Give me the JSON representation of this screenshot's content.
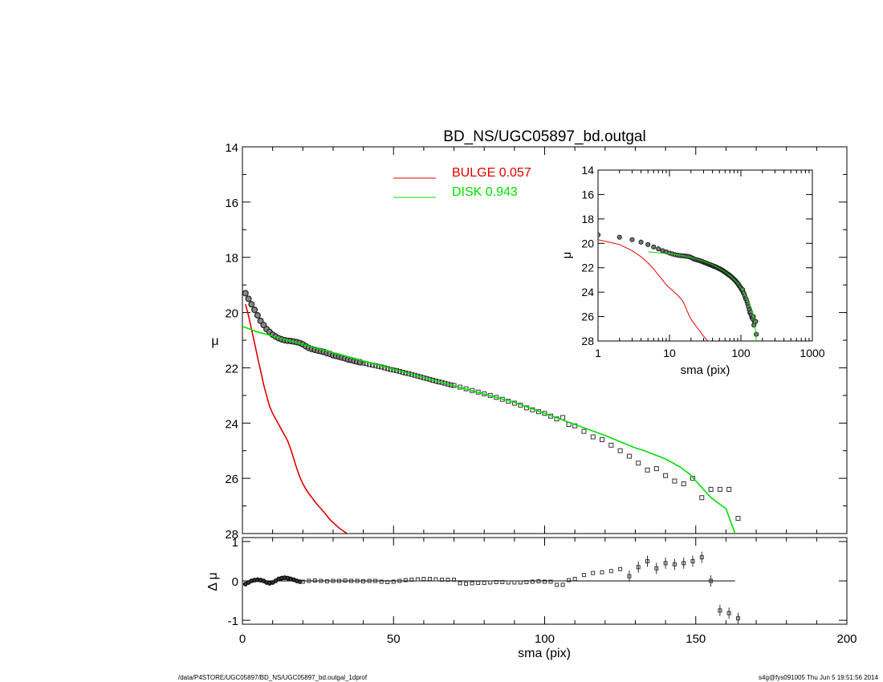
{
  "footer": {
    "left": "/data/P4STORE/UGC05897/BD_NS/UGC05897_bd.outgal_1dprof",
    "right": "s4g@fys091005  Thu Jun  5 19:51:56 2014"
  },
  "chart_data": [
    {
      "type": "scatter",
      "title": "BD_NS/UGC05897_bd.outgal",
      "xlabel": "",
      "ylabel": "μ",
      "xlim": [
        0,
        200
      ],
      "ylim": [
        28,
        14
      ],
      "x_ticks": [
        "0",
        "50",
        "100",
        "150",
        "200"
      ],
      "y_ticks": [
        "14",
        "16",
        "18",
        "20",
        "22",
        "24",
        "26",
        "28"
      ],
      "legend": [
        {
          "label": "BULGE  0.057",
          "color": "#e00000"
        },
        {
          "label": "DISK  0.943",
          "color": "#00e000"
        }
      ],
      "legend_position": "top-center",
      "data_points": {
        "name": "",
        "color": "#000000",
        "x": [
          1,
          2,
          3,
          4,
          5,
          6,
          7,
          8,
          9,
          10,
          11,
          12,
          13,
          14,
          15,
          16,
          17,
          18,
          19,
          20,
          21,
          22,
          23,
          24,
          25,
          26,
          27,
          28,
          29,
          30,
          31,
          32,
          33,
          34,
          35,
          36,
          37,
          38,
          39,
          40,
          41,
          42,
          43,
          44,
          45,
          46,
          47,
          48,
          49,
          50,
          51,
          52,
          53,
          54,
          55,
          56,
          57,
          58,
          59,
          60,
          61,
          62,
          63,
          64,
          65,
          66,
          67,
          68,
          69,
          70,
          72,
          74,
          76,
          78,
          80,
          82,
          84,
          86,
          88,
          90,
          92,
          94,
          96,
          98,
          100,
          102,
          104,
          106,
          108,
          110,
          113,
          116,
          119,
          122,
          125,
          128,
          131,
          134,
          137,
          140,
          143,
          146,
          149,
          152,
          155,
          158,
          161,
          164
        ],
        "y": [
          19.3,
          19.5,
          19.7,
          19.9,
          20.1,
          20.3,
          20.45,
          20.6,
          20.7,
          20.8,
          20.87,
          20.93,
          20.97,
          21.0,
          21.02,
          21.03,
          21.05,
          21.07,
          21.1,
          21.15,
          21.22,
          21.28,
          21.32,
          21.35,
          21.38,
          21.4,
          21.43,
          21.47,
          21.5,
          21.55,
          21.57,
          21.6,
          21.63,
          21.66,
          21.7,
          21.72,
          21.75,
          21.78,
          21.8,
          21.83,
          21.85,
          21.88,
          21.9,
          21.92,
          21.95,
          21.97,
          22.0,
          22.03,
          22.06,
          22.08,
          22.1,
          22.13,
          22.16,
          22.19,
          22.21,
          22.24,
          22.27,
          22.3,
          22.33,
          22.36,
          22.39,
          22.42,
          22.45,
          22.48,
          22.51,
          22.53,
          22.56,
          22.59,
          22.62,
          22.64,
          22.7,
          22.76,
          22.82,
          22.88,
          22.94,
          23.0,
          23.07,
          23.14,
          23.21,
          23.28,
          23.35,
          23.45,
          23.52,
          23.59,
          23.65,
          23.75,
          23.85,
          23.8,
          24.05,
          24.1,
          24.3,
          24.5,
          24.6,
          24.8,
          25.0,
          25.2,
          25.45,
          25.7,
          25.65,
          25.9,
          26.1,
          26.2,
          26.0,
          26.7,
          26.4,
          26.4,
          26.4,
          27.45
        ]
      },
      "bulge": {
        "name": "BULGE",
        "color": "#e00000",
        "x": [
          1,
          2,
          3,
          4,
          5,
          6,
          7,
          8,
          9,
          10,
          11,
          12,
          13,
          14,
          15,
          16,
          17,
          18,
          19,
          20,
          21,
          22,
          23,
          24,
          25,
          26,
          27,
          28,
          29,
          30,
          31,
          32,
          33,
          34,
          35,
          36
        ],
        "y": [
          19.7,
          20.1,
          20.6,
          21.1,
          21.6,
          22.1,
          22.6,
          23.0,
          23.4,
          23.65,
          23.85,
          24.05,
          24.25,
          24.45,
          24.65,
          24.95,
          25.3,
          25.65,
          25.95,
          26.2,
          26.4,
          26.55,
          26.7,
          26.85,
          26.98,
          27.1,
          27.23,
          27.36,
          27.5,
          27.6,
          27.7,
          27.8,
          27.88,
          27.95,
          28.03,
          28.1
        ]
      },
      "disk": {
        "name": "DISK",
        "color": "#00e000",
        "x": [
          0,
          5,
          10,
          15,
          20,
          30,
          40,
          50,
          60,
          70,
          80,
          90,
          100,
          110,
          120,
          130,
          133,
          140,
          145,
          148,
          155,
          160,
          163
        ],
        "y": [
          20.5,
          20.7,
          20.85,
          21.0,
          21.15,
          21.45,
          21.75,
          22.05,
          22.35,
          22.65,
          22.95,
          23.25,
          23.65,
          24.05,
          24.45,
          24.9,
          25.0,
          25.3,
          25.6,
          25.85,
          26.7,
          27.1,
          28.0
        ]
      }
    },
    {
      "type": "scatter",
      "title": "",
      "xlabel": "sma (pix)",
      "ylabel": "Δ μ",
      "xlim": [
        0,
        200
      ],
      "ylim": [
        -1.1,
        1.1
      ],
      "x_ticks": [
        "0",
        "50",
        "100",
        "150",
        "200"
      ],
      "y_ticks": [
        "-1",
        "0",
        "1"
      ],
      "zero_line_to_x": 163,
      "residuals": {
        "x": [
          1,
          2,
          3,
          4,
          5,
          6,
          7,
          8,
          9,
          10,
          11,
          12,
          13,
          14,
          15,
          16,
          17,
          18,
          19,
          20,
          22,
          24,
          26,
          28,
          30,
          32,
          34,
          36,
          38,
          40,
          42,
          44,
          46,
          48,
          50,
          52,
          54,
          56,
          58,
          60,
          62,
          64,
          66,
          68,
          70,
          72,
          74,
          76,
          78,
          80,
          82,
          84,
          86,
          88,
          90,
          92,
          94,
          96,
          98,
          100,
          102,
          104,
          106,
          108,
          110,
          113,
          116,
          119,
          122,
          125,
          128,
          131,
          134,
          137,
          140,
          143,
          146,
          149,
          152,
          155,
          158,
          161,
          164
        ],
        "y": [
          -0.08,
          -0.04,
          0.0,
          0.02,
          0.03,
          0.02,
          0.0,
          -0.04,
          -0.06,
          -0.04,
          0.0,
          0.05,
          0.07,
          0.08,
          0.07,
          0.05,
          0.03,
          0.0,
          -0.02,
          -0.02,
          0.0,
          0.01,
          0.0,
          -0.01,
          0.0,
          0.0,
          0.01,
          0.0,
          0.0,
          -0.01,
          0.0,
          0.0,
          -0.02,
          -0.03,
          -0.02,
          0.0,
          0.02,
          0.03,
          0.04,
          0.05,
          0.05,
          0.04,
          0.03,
          0.03,
          0.03,
          -0.06,
          -0.07,
          -0.06,
          -0.05,
          -0.05,
          -0.04,
          -0.03,
          -0.03,
          -0.04,
          -0.04,
          -0.04,
          -0.03,
          -0.02,
          -0.01,
          -0.02,
          -0.02,
          -0.1,
          -0.1,
          0.02,
          0.05,
          0.15,
          0.2,
          0.22,
          0.25,
          0.3,
          0.12,
          0.35,
          0.5,
          0.32,
          0.45,
          0.42,
          0.45,
          0.5,
          0.6,
          0.0,
          -0.75,
          -0.82,
          -0.95
        ]
      }
    },
    {
      "type": "scatter",
      "title": "",
      "xlabel": "sma (pix)",
      "ylabel": "μ",
      "xscale": "log",
      "xlim": [
        1,
        1000
      ],
      "ylim": [
        28,
        14
      ],
      "x_ticks": [
        "1",
        "10",
        "100",
        "1000"
      ],
      "y_ticks": [
        "14",
        "16",
        "18",
        "20",
        "22",
        "24",
        "26",
        "28"
      ],
      "grid": false
    }
  ]
}
